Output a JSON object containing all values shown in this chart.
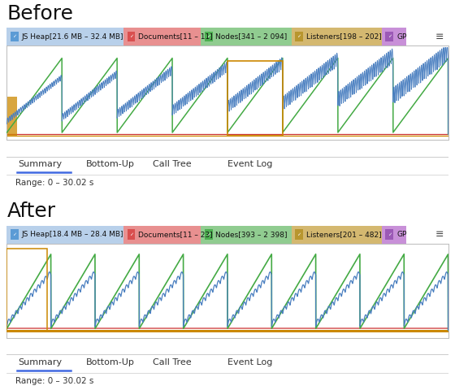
{
  "before_title": "Before",
  "after_title": "After",
  "before_legend": [
    {
      "label": "JS Heap[21.6 MB – 32.4 MB]",
      "color": "#5b9bd5",
      "bg": "#b8d0ea"
    },
    {
      "label": "Documents[11 – 11]",
      "color": "#d94f4f",
      "bg": "#e89090"
    },
    {
      "label": "Nodes[341 – 2 094]",
      "color": "#4caf50",
      "bg": "#90cc90"
    },
    {
      "label": "Listeners[198 – 202]",
      "color": "#b8962e",
      "bg": "#d4b870"
    },
    {
      "label": "GP",
      "color": "#9b59b6",
      "bg": "#c890d8"
    }
  ],
  "after_legend": [
    {
      "label": "JS Heap[18.4 MB – 28.4 MB]",
      "color": "#5b9bd5",
      "bg": "#b8d0ea"
    },
    {
      "label": "Documents[11 – 23]",
      "color": "#d94f4f",
      "bg": "#e89090"
    },
    {
      "label": "Nodes[393 – 2 398]",
      "color": "#4caf50",
      "bg": "#90cc90"
    },
    {
      "label": "Listeners[201 – 482]",
      "color": "#b8962e",
      "bg": "#d4b870"
    },
    {
      "label": "GP",
      "color": "#9b59b6",
      "bg": "#c890d8"
    }
  ],
  "tab_labels": [
    "Summary",
    "Bottom-Up",
    "Call Tree",
    "Event Log"
  ],
  "range_text": "Range: 0 – 30.02 s",
  "bg_color": "#ffffff",
  "border_color": "#cccccc",
  "n_before_cycles": 8,
  "n_after_cycles": 10,
  "title_fontsize": 18,
  "legend_fontsize": 6.5,
  "tab_fontsize": 8,
  "range_fontsize": 7.5,
  "blue_before": "#4a7fc0",
  "green_color": "#44aa44",
  "orange_color": "#cc8800",
  "red_color": "#cc3333"
}
